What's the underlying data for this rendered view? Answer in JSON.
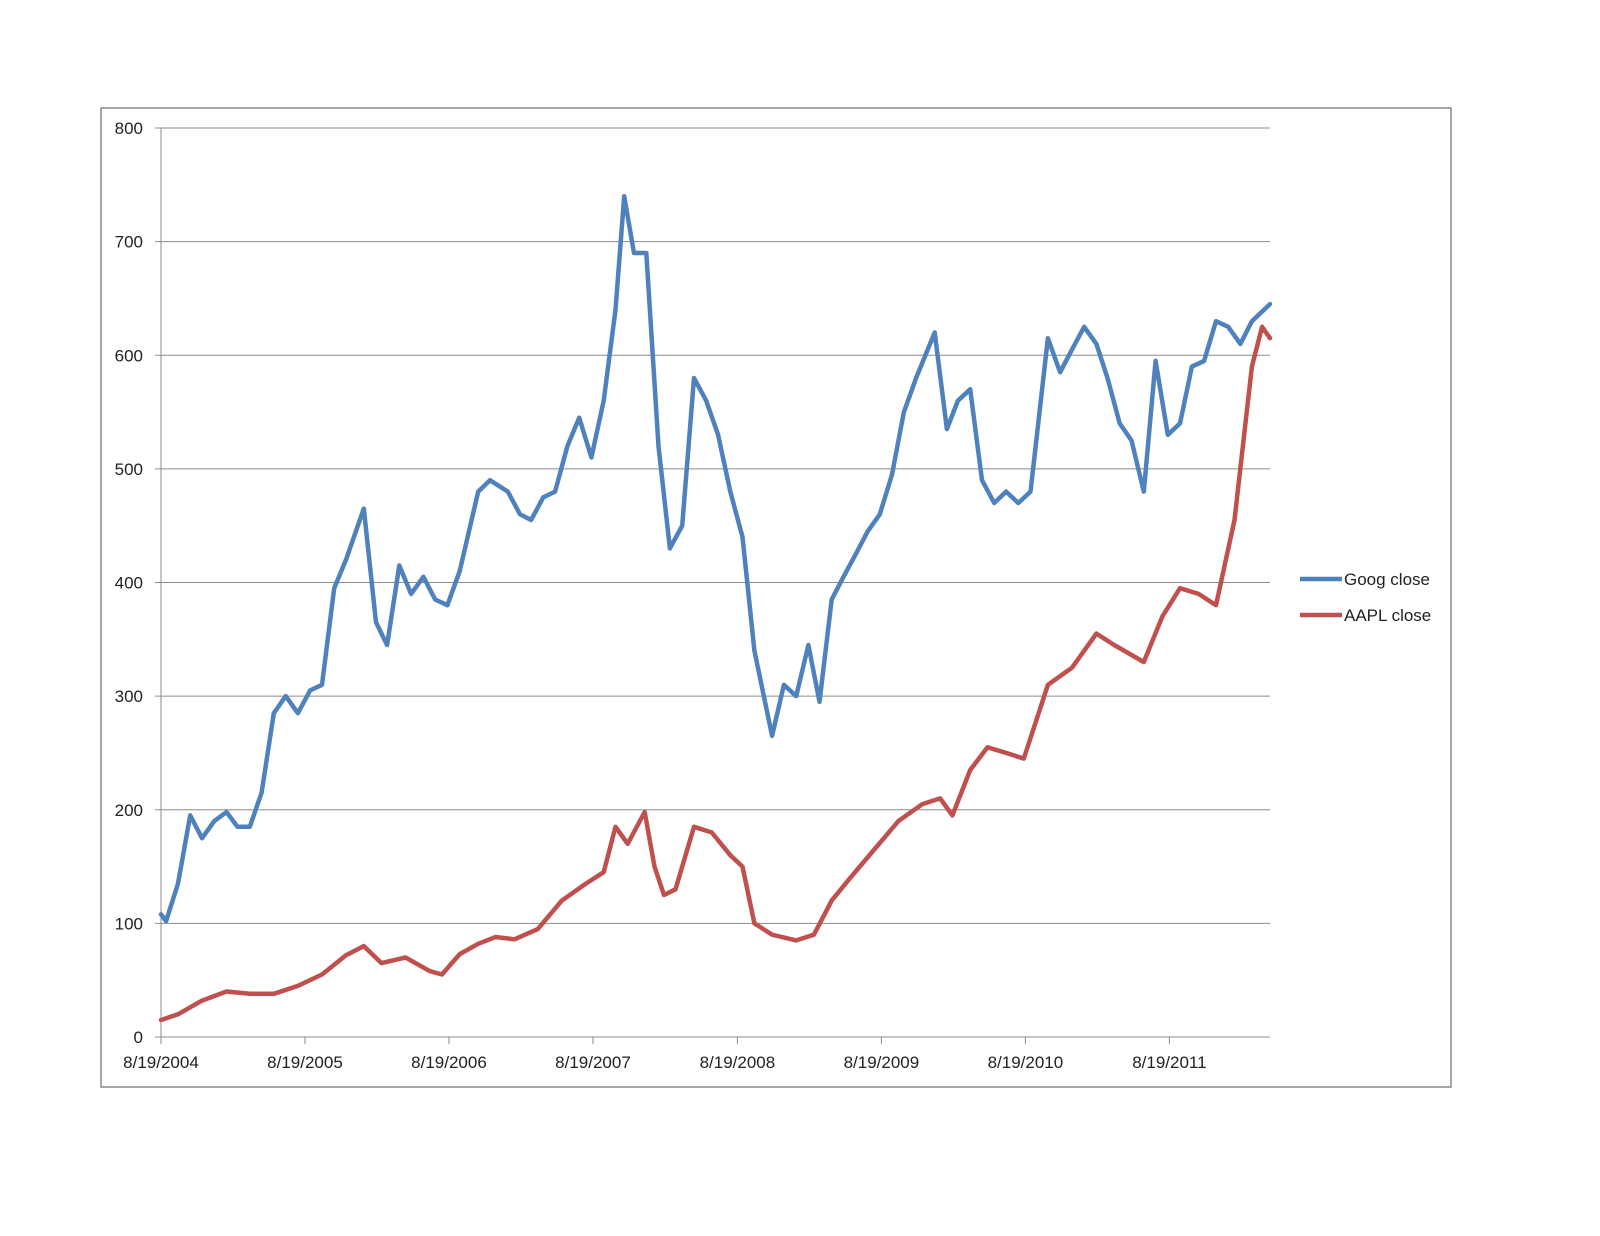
{
  "chart_data": {
    "type": "line",
    "title": "",
    "xlabel": "",
    "ylabel": "",
    "x_range": [
      "8/19/2004",
      "4/30/2012"
    ],
    "ylim": [
      0,
      800
    ],
    "yticks": [
      0,
      100,
      200,
      300,
      400,
      500,
      600,
      700,
      800
    ],
    "xtick_labels": [
      "8/19/2004",
      "8/19/2005",
      "8/19/2006",
      "8/19/2007",
      "8/19/2008",
      "8/19/2009",
      "8/19/2010",
      "8/19/2011"
    ],
    "grid": "horizontal",
    "legend_position": "right",
    "series": [
      {
        "name": "Goog close",
        "color": "#4F81BD",
        "points": [
          [
            "8/19/2004",
            108
          ],
          [
            "9/1/2004",
            102
          ],
          [
            "10/1/2004",
            135
          ],
          [
            "11/1/2004",
            195
          ],
          [
            "12/1/2004",
            175
          ],
          [
            "1/1/2005",
            190
          ],
          [
            "2/1/2005",
            198
          ],
          [
            "3/1/2005",
            185
          ],
          [
            "4/1/2005",
            185
          ],
          [
            "5/1/2005",
            215
          ],
          [
            "6/1/2005",
            285
          ],
          [
            "7/1/2005",
            300
          ],
          [
            "8/1/2005",
            285
          ],
          [
            "9/1/2005",
            305
          ],
          [
            "10/1/2005",
            310
          ],
          [
            "11/1/2005",
            395
          ],
          [
            "12/1/2005",
            420
          ],
          [
            "1/15/2006",
            465
          ],
          [
            "2/15/2006",
            365
          ],
          [
            "3/15/2006",
            345
          ],
          [
            "4/15/2006",
            415
          ],
          [
            "5/15/2006",
            390
          ],
          [
            "6/15/2006",
            405
          ],
          [
            "7/15/2006",
            385
          ],
          [
            "8/15/2006",
            380
          ],
          [
            "9/15/2006",
            410
          ],
          [
            "11/1/2006",
            480
          ],
          [
            "12/1/2006",
            490
          ],
          [
            "1/15/2007",
            480
          ],
          [
            "2/15/2007",
            460
          ],
          [
            "3/15/2007",
            455
          ],
          [
            "4/15/2007",
            475
          ],
          [
            "5/15/2007",
            480
          ],
          [
            "6/15/2007",
            520
          ],
          [
            "7/15/2007",
            545
          ],
          [
            "8/15/2007",
            510
          ],
          [
            "9/15/2007",
            560
          ],
          [
            "10/15/2007",
            640
          ],
          [
            "11/6/2007",
            740
          ],
          [
            "12/1/2007",
            690
          ],
          [
            "1/1/2008",
            690
          ],
          [
            "2/1/2008",
            520
          ],
          [
            "3/1/2008",
            430
          ],
          [
            "4/1/2008",
            450
          ],
          [
            "5/1/2008",
            580
          ],
          [
            "6/1/2008",
            560
          ],
          [
            "7/1/2008",
            530
          ],
          [
            "8/1/2008",
            480
          ],
          [
            "9/1/2008",
            440
          ],
          [
            "10/1/2008",
            340
          ],
          [
            "11/15/2008",
            265
          ],
          [
            "12/15/2008",
            310
          ],
          [
            "1/15/2009",
            300
          ],
          [
            "2/15/2009",
            345
          ],
          [
            "3/15/2009",
            295
          ],
          [
            "4/15/2009",
            385
          ],
          [
            "5/15/2009",
            405
          ],
          [
            "6/15/2009",
            425
          ],
          [
            "7/15/2009",
            445
          ],
          [
            "8/15/2009",
            460
          ],
          [
            "9/15/2009",
            495
          ],
          [
            "10/15/2009",
            550
          ],
          [
            "11/15/2009",
            580
          ],
          [
            "1/1/2010",
            620
          ],
          [
            "2/1/2010",
            535
          ],
          [
            "3/1/2010",
            560
          ],
          [
            "4/1/2010",
            570
          ],
          [
            "5/1/2010",
            490
          ],
          [
            "6/1/2010",
            470
          ],
          [
            "7/1/2010",
            480
          ],
          [
            "8/1/2010",
            470
          ],
          [
            "9/1/2010",
            480
          ],
          [
            "10/15/2010",
            615
          ],
          [
            "11/15/2010",
            585
          ],
          [
            "12/15/2010",
            605
          ],
          [
            "1/15/2011",
            625
          ],
          [
            "2/15/2011",
            610
          ],
          [
            "3/15/2011",
            580
          ],
          [
            "4/15/2011",
            540
          ],
          [
            "5/15/2011",
            525
          ],
          [
            "6/15/2011",
            480
          ],
          [
            "7/15/2011",
            595
          ],
          [
            "8/15/2011",
            530
          ],
          [
            "9/15/2011",
            540
          ],
          [
            "10/15/2011",
            590
          ],
          [
            "11/15/2011",
            595
          ],
          [
            "12/15/2011",
            630
          ],
          [
            "1/15/2012",
            625
          ],
          [
            "2/15/2012",
            610
          ],
          [
            "3/15/2012",
            630
          ],
          [
            "4/30/2012",
            645
          ]
        ]
      },
      {
        "name": "AAPL close",
        "color": "#C0504D",
        "points": [
          [
            "8/19/2004",
            15
          ],
          [
            "10/1/2004",
            20
          ],
          [
            "12/1/2004",
            32
          ],
          [
            "2/1/2005",
            40
          ],
          [
            "4/1/2005",
            38
          ],
          [
            "6/1/2005",
            38
          ],
          [
            "8/1/2005",
            45
          ],
          [
            "10/1/2005",
            55
          ],
          [
            "12/1/2005",
            72
          ],
          [
            "1/15/2006",
            80
          ],
          [
            "3/1/2006",
            65
          ],
          [
            "5/1/2006",
            70
          ],
          [
            "7/1/2006",
            58
          ],
          [
            "8/1/2006",
            55
          ],
          [
            "9/15/2006",
            73
          ],
          [
            "11/1/2006",
            82
          ],
          [
            "12/15/2006",
            88
          ],
          [
            "2/1/2007",
            86
          ],
          [
            "4/1/2007",
            95
          ],
          [
            "6/1/2007",
            120
          ],
          [
            "8/1/2007",
            135
          ],
          [
            "9/15/2007",
            145
          ],
          [
            "10/15/2007",
            185
          ],
          [
            "11/15/2007",
            170
          ],
          [
            "12/28/2007",
            198
          ],
          [
            "1/22/2008",
            150
          ],
          [
            "2/15/2008",
            125
          ],
          [
            "3/15/2008",
            130
          ],
          [
            "5/1/2008",
            185
          ],
          [
            "6/15/2008",
            180
          ],
          [
            "8/1/2008",
            160
          ],
          [
            "9/1/2008",
            150
          ],
          [
            "10/1/2008",
            100
          ],
          [
            "11/15/2008",
            90
          ],
          [
            "1/15/2009",
            85
          ],
          [
            "3/1/2009",
            90
          ],
          [
            "4/15/2009",
            120
          ],
          [
            "6/1/2009",
            140
          ],
          [
            "8/1/2009",
            165
          ],
          [
            "10/1/2009",
            190
          ],
          [
            "12/1/2009",
            205
          ],
          [
            "1/15/2010",
            210
          ],
          [
            "2/15/2010",
            195
          ],
          [
            "4/1/2010",
            235
          ],
          [
            "5/15/2010",
            255
          ],
          [
            "7/1/2010",
            250
          ],
          [
            "8/15/2010",
            245
          ],
          [
            "10/15/2010",
            310
          ],
          [
            "12/15/2010",
            325
          ],
          [
            "2/15/2011",
            355
          ],
          [
            "4/1/2011",
            345
          ],
          [
            "6/15/2011",
            330
          ],
          [
            "8/1/2011",
            370
          ],
          [
            "9/15/2011",
            395
          ],
          [
            "11/1/2011",
            390
          ],
          [
            "12/15/2011",
            380
          ],
          [
            "1/31/2012",
            455
          ],
          [
            "3/15/2012",
            590
          ],
          [
            "4/10/2012",
            625
          ],
          [
            "4/30/2012",
            615
          ]
        ]
      }
    ]
  }
}
